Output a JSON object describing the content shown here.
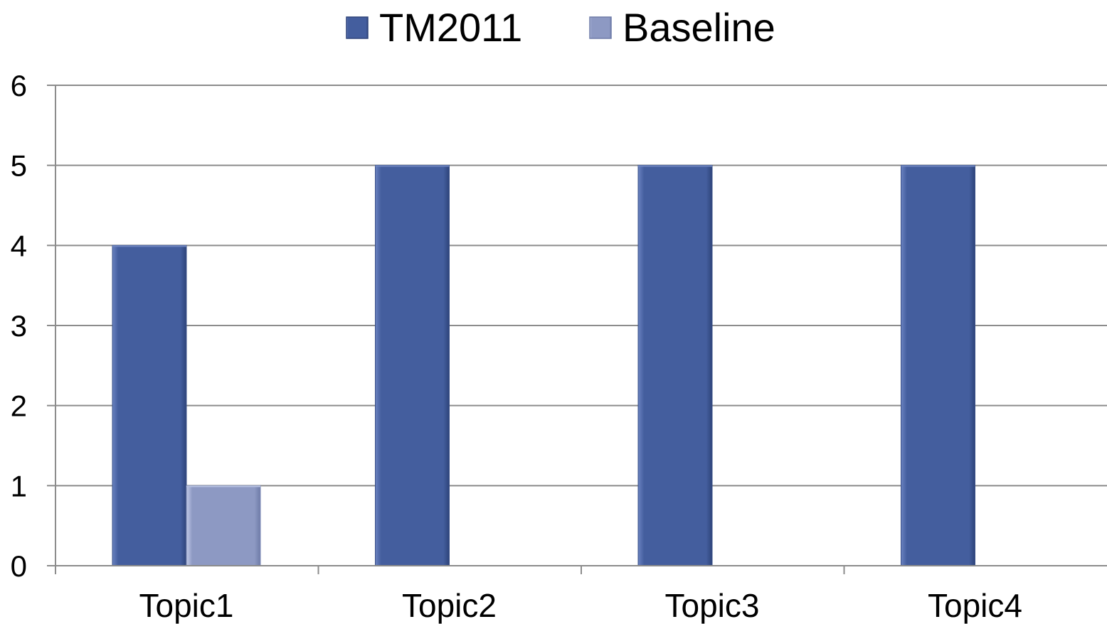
{
  "chart_data": {
    "type": "bar",
    "categories": [
      "Topic1",
      "Topic2",
      "Topic3",
      "Topic4"
    ],
    "series": [
      {
        "name": "TM2011",
        "values": [
          4,
          5,
          5,
          5
        ],
        "color": "#445E9E"
      },
      {
        "name": "Baseline",
        "values": [
          1,
          0,
          0,
          0
        ],
        "color": "#8D99C3"
      }
    ],
    "ylim": [
      0,
      6
    ],
    "yticks": [
      "0",
      "1",
      "2",
      "3",
      "4",
      "5",
      "6"
    ],
    "grid": true,
    "legend_position": "top-center",
    "xlabel": "",
    "ylabel": "",
    "title": ""
  }
}
